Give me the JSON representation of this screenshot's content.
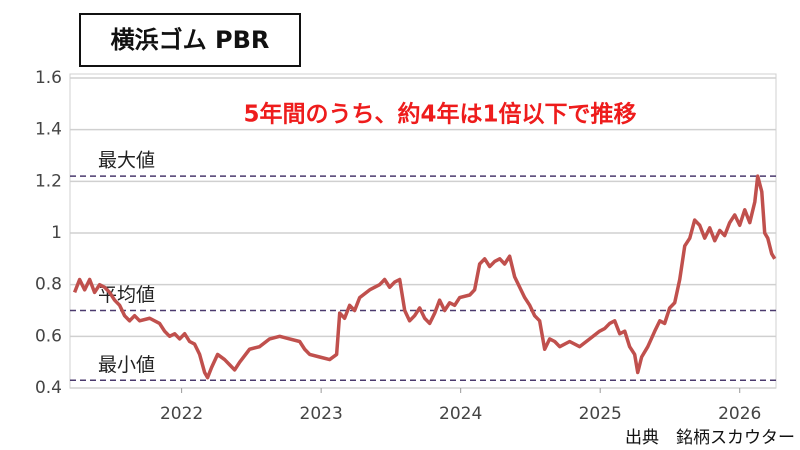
{
  "chart_data": {
    "type": "line",
    "title": "横浜ゴム PBR",
    "annotation": "5年間のうち、約4年は1倍以下で推移",
    "source": "出典　銘柄スカウター",
    "xlim": [
      2021.2,
      2026.26
    ],
    "xticks": [
      2022,
      2023,
      2024,
      2025,
      2026
    ],
    "ylim": [
      0.4,
      1.6
    ],
    "yticks": [
      0.4,
      0.6,
      0.8,
      1,
      1.2,
      1.4,
      1.6
    ],
    "grid": true,
    "reference_lines": [
      {
        "label": "最大値",
        "value": 1.22,
        "color": "#4b3a6e"
      },
      {
        "label": "平均値",
        "value": 0.7,
        "color": "#4b3a6e"
      },
      {
        "label": "最小値",
        "value": 0.43,
        "color": "#4b3a6e"
      }
    ],
    "x": [
      2021.233,
      2021.269,
      2021.305,
      2021.341,
      2021.376,
      2021.412,
      2021.448,
      2021.484,
      2021.52,
      2021.556,
      2021.591,
      2021.627,
      2021.663,
      2021.699,
      2021.771,
      2021.842,
      2021.878,
      2021.914,
      2021.95,
      2021.986,
      2022.022,
      2022.057,
      2022.093,
      2022.129,
      2022.165,
      2022.186,
      2022.215,
      2022.258,
      2022.308,
      2022.344,
      2022.38,
      2022.416,
      2022.487,
      2022.559,
      2022.631,
      2022.703,
      2022.774,
      2022.846,
      2022.882,
      2022.918,
      2022.989,
      2023.061,
      2023.111,
      2023.133,
      2023.168,
      2023.204,
      2023.24,
      2023.276,
      2023.348,
      2023.419,
      2023.455,
      2023.491,
      2023.527,
      2023.563,
      2023.599,
      2023.634,
      2023.67,
      2023.706,
      2023.742,
      2023.778,
      2023.814,
      2023.849,
      2023.885,
      2023.921,
      2023.957,
      2023.993,
      2024.065,
      2024.1,
      2024.136,
      2024.172,
      2024.208,
      2024.244,
      2024.28,
      2024.315,
      2024.351,
      2024.387,
      2024.423,
      2024.459,
      2024.495,
      2024.53,
      2024.566,
      2024.602,
      2024.638,
      2024.674,
      2024.71,
      2024.781,
      2024.853,
      2024.925,
      2024.996,
      2025.032,
      2025.068,
      2025.104,
      2025.14,
      2025.176,
      2025.211,
      2025.247,
      2025.269,
      2025.297,
      2025.341,
      2025.391,
      2025.427,
      2025.462,
      2025.498,
      2025.534,
      2025.57,
      2025.606,
      2025.642,
      2025.677,
      2025.713,
      2025.749,
      2025.785,
      2025.821,
      2025.857,
      2025.892,
      2025.928,
      2025.964,
      2026.0,
      2026.036,
      2026.072,
      2026.108,
      2026.129,
      2026.158,
      2026.179,
      2026.201,
      2026.229,
      2026.251
    ],
    "series": [
      {
        "name": "PBR",
        "color": "#c0504d",
        "values": [
          0.77,
          0.82,
          0.78,
          0.82,
          0.77,
          0.8,
          0.79,
          0.77,
          0.74,
          0.72,
          0.68,
          0.66,
          0.68,
          0.66,
          0.67,
          0.65,
          0.62,
          0.6,
          0.61,
          0.59,
          0.61,
          0.58,
          0.57,
          0.53,
          0.46,
          0.44,
          0.48,
          0.53,
          0.51,
          0.49,
          0.47,
          0.5,
          0.55,
          0.56,
          0.59,
          0.6,
          0.59,
          0.58,
          0.55,
          0.53,
          0.52,
          0.51,
          0.53,
          0.69,
          0.67,
          0.72,
          0.7,
          0.75,
          0.78,
          0.8,
          0.82,
          0.79,
          0.81,
          0.82,
          0.7,
          0.66,
          0.68,
          0.71,
          0.67,
          0.65,
          0.69,
          0.74,
          0.7,
          0.73,
          0.72,
          0.75,
          0.76,
          0.78,
          0.88,
          0.9,
          0.87,
          0.89,
          0.9,
          0.88,
          0.91,
          0.83,
          0.79,
          0.75,
          0.72,
          0.68,
          0.66,
          0.55,
          0.59,
          0.58,
          0.56,
          0.58,
          0.56,
          0.59,
          0.62,
          0.63,
          0.65,
          0.66,
          0.61,
          0.62,
          0.56,
          0.53,
          0.46,
          0.52,
          0.56,
          0.62,
          0.66,
          0.65,
          0.71,
          0.73,
          0.82,
          0.95,
          0.98,
          1.05,
          1.03,
          0.98,
          1.02,
          0.97,
          1.01,
          0.99,
          1.04,
          1.07,
          1.03,
          1.09,
          1.04,
          1.12,
          1.22,
          1.16,
          1.0,
          0.98,
          0.92,
          0.9
        ]
      }
    ]
  }
}
